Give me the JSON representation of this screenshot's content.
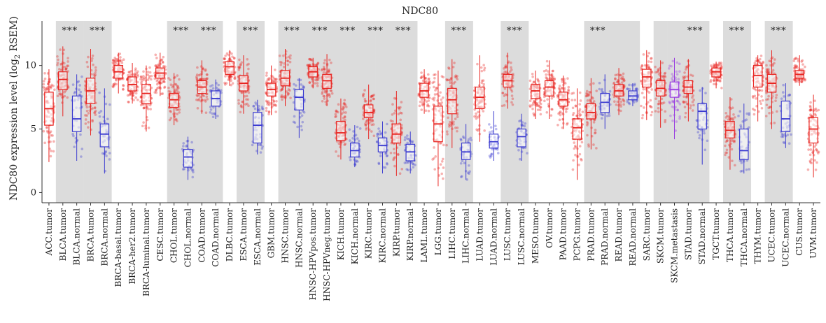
{
  "chart_data": {
    "type": "box",
    "title": "NDC80",
    "ylabel_prefix": "NDC80 expression level (log",
    "ylabel_sub": "2",
    "ylabel_suffix": " RSEM)",
    "ylim": [
      -0.8,
      13.5
    ],
    "yticks": [
      0,
      5,
      10
    ],
    "significance_label": "***",
    "colors": {
      "tumor": "#e8231f",
      "normal": "#3b3bd0",
      "metastasis": "#9a3fe0",
      "shade": "#dcdcdc"
    },
    "categories": [
      {
        "label": "ACC.tumor",
        "type": "tumor",
        "q1": 5.3,
        "median": 6.6,
        "q3": 7.9,
        "low": 2.4,
        "high": 9.7
      },
      {
        "label": "BLCA.tumor",
        "type": "tumor",
        "q1": 8.1,
        "median": 8.9,
        "q3": 9.5,
        "low": 6.0,
        "high": 11.5,
        "sig": "***",
        "shade": true
      },
      {
        "label": "BLCA.normal",
        "type": "normal",
        "q1": 4.8,
        "median": 5.8,
        "q3": 7.6,
        "low": 2.5,
        "high": 9.3,
        "shade": true
      },
      {
        "label": "BRCA.tumor",
        "type": "tumor",
        "q1": 7.0,
        "median": 8.0,
        "q3": 9.0,
        "low": 4.5,
        "high": 11.3,
        "sig": "***",
        "shade": true
      },
      {
        "label": "BRCA.normal",
        "type": "normal",
        "q1": 3.6,
        "median": 4.6,
        "q3": 5.4,
        "low": 1.5,
        "high": 8.2,
        "shade": true
      },
      {
        "label": "BRCA-basal.tumor",
        "type": "tumor",
        "q1": 9.0,
        "median": 9.5,
        "q3": 10.0,
        "low": 7.8,
        "high": 11.0
      },
      {
        "label": "BRCA-her2.tumor",
        "type": "tumor",
        "q1": 8.0,
        "median": 8.5,
        "q3": 9.1,
        "low": 7.0,
        "high": 10.2
      },
      {
        "label": "BRCA-luminal.tumor",
        "type": "tumor",
        "q1": 7.0,
        "median": 7.8,
        "q3": 8.5,
        "low": 4.8,
        "high": 10.0
      },
      {
        "label": "CESC.tumor",
        "type": "tumor",
        "q1": 9.0,
        "median": 9.4,
        "q3": 9.8,
        "low": 7.6,
        "high": 11.0
      },
      {
        "label": "CHOL.tumor",
        "type": "tumor",
        "q1": 6.7,
        "median": 7.3,
        "q3": 7.8,
        "low": 5.3,
        "high": 9.4,
        "sig": "***",
        "shade": true
      },
      {
        "label": "CHOL.normal",
        "type": "normal",
        "q1": 2.0,
        "median": 2.8,
        "q3": 3.4,
        "low": 1.0,
        "high": 4.4,
        "shade": true
      },
      {
        "label": "COAD.tumor",
        "type": "tumor",
        "q1": 7.8,
        "median": 8.3,
        "q3": 8.8,
        "low": 6.2,
        "high": 10.4,
        "sig": "***",
        "shade": true
      },
      {
        "label": "COAD.normal",
        "type": "normal",
        "q1": 6.8,
        "median": 7.4,
        "q3": 8.0,
        "low": 5.8,
        "high": 8.9,
        "shade": true
      },
      {
        "label": "DLBC.tumor",
        "type": "tumor",
        "q1": 9.3,
        "median": 9.9,
        "q3": 10.3,
        "low": 8.4,
        "high": 11.2
      },
      {
        "label": "ESCA.tumor",
        "type": "tumor",
        "q1": 8.0,
        "median": 8.6,
        "q3": 9.2,
        "low": 6.2,
        "high": 10.8,
        "sig": "***",
        "shade": true
      },
      {
        "label": "ESCA.normal",
        "type": "normal",
        "q1": 3.9,
        "median": 5.3,
        "q3": 6.3,
        "low": 3.0,
        "high": 7.3,
        "shade": true
      },
      {
        "label": "GBM.tumor",
        "type": "tumor",
        "q1": 7.6,
        "median": 8.1,
        "q3": 8.6,
        "low": 6.1,
        "high": 10.0
      },
      {
        "label": "HNSC.tumor",
        "type": "tumor",
        "q1": 8.4,
        "median": 9.0,
        "q3": 9.6,
        "low": 6.8,
        "high": 11.3,
        "sig": "***",
        "shade": true
      },
      {
        "label": "HNSC.normal",
        "type": "normal",
        "q1": 6.5,
        "median": 7.5,
        "q3": 8.1,
        "low": 4.3,
        "high": 9.0,
        "shade": true
      },
      {
        "label": "HNSC-HPVpos.tumor",
        "type": "tumor",
        "q1": 9.1,
        "median": 9.5,
        "q3": 9.9,
        "low": 8.2,
        "high": 10.6,
        "sig": "***",
        "shade": true
      },
      {
        "label": "HNSC-HPVneg.tumor",
        "type": "tumor",
        "q1": 8.2,
        "median": 8.8,
        "q3": 9.3,
        "low": 6.8,
        "high": 10.9,
        "shade": true
      },
      {
        "label": "KICH.tumor",
        "type": "tumor",
        "q1": 4.1,
        "median": 4.7,
        "q3": 5.6,
        "low": 2.6,
        "high": 7.4,
        "sig": "***",
        "shade": true
      },
      {
        "label": "KICH.normal",
        "type": "normal",
        "q1": 2.8,
        "median": 3.3,
        "q3": 3.9,
        "low": 2.0,
        "high": 5.3,
        "shade": true
      },
      {
        "label": "KIRC.tumor",
        "type": "tumor",
        "q1": 5.9,
        "median": 6.3,
        "q3": 6.9,
        "low": 4.2,
        "high": 8.5,
        "sig": "***",
        "shade": true
      },
      {
        "label": "KIRC.normal",
        "type": "normal",
        "q1": 3.2,
        "median": 3.7,
        "q3": 4.3,
        "low": 1.5,
        "high": 5.6,
        "shade": true
      },
      {
        "label": "KIRP.tumor",
        "type": "tumor",
        "q1": 3.9,
        "median": 4.6,
        "q3": 5.4,
        "low": 1.3,
        "high": 8.0,
        "sig": "***",
        "shade": true
      },
      {
        "label": "KIRP.normal",
        "type": "normal",
        "q1": 2.5,
        "median": 3.2,
        "q3": 3.8,
        "low": 1.5,
        "high": 4.8,
        "shade": true
      },
      {
        "label": "LAML.tumor",
        "type": "tumor",
        "q1": 7.5,
        "median": 8.0,
        "q3": 8.6,
        "low": 6.2,
        "high": 9.7
      },
      {
        "label": "LGG.tumor",
        "type": "tumor",
        "q1": 4.0,
        "median": 5.4,
        "q3": 6.8,
        "low": 0.5,
        "high": 9.6
      },
      {
        "label": "LIHC.tumor",
        "type": "tumor",
        "q1": 6.2,
        "median": 7.3,
        "q3": 8.2,
        "low": 3.5,
        "high": 10.5,
        "sig": "***",
        "shade": true
      },
      {
        "label": "LIHC.normal",
        "type": "normal",
        "q1": 2.6,
        "median": 3.2,
        "q3": 3.9,
        "low": 1.0,
        "high": 5.4,
        "shade": true
      },
      {
        "label": "LUAD.tumor",
        "type": "tumor",
        "q1": 6.6,
        "median": 7.5,
        "q3": 8.3,
        "low": 4.0,
        "high": 10.8
      },
      {
        "label": "LUAD.normal",
        "type": "normal",
        "q1": 3.5,
        "median": 4.0,
        "q3": 4.6,
        "low": 2.5,
        "high": 6.4
      },
      {
        "label": "LUSC.tumor",
        "type": "tumor",
        "q1": 8.3,
        "median": 8.8,
        "q3": 9.3,
        "low": 6.6,
        "high": 11.0,
        "sig": "***",
        "shade": true
      },
      {
        "label": "LUSC.normal",
        "type": "normal",
        "q1": 3.6,
        "median": 4.4,
        "q3": 5.0,
        "low": 2.5,
        "high": 6.2,
        "shade": true
      },
      {
        "label": "MESO.tumor",
        "type": "tumor",
        "q1": 7.4,
        "median": 8.0,
        "q3": 8.5,
        "low": 5.8,
        "high": 9.6
      },
      {
        "label": "OV.tumor",
        "type": "tumor",
        "q1": 7.6,
        "median": 8.3,
        "q3": 8.8,
        "low": 5.8,
        "high": 10.4
      },
      {
        "label": "PAAD.tumor",
        "type": "tumor",
        "q1": 6.8,
        "median": 7.3,
        "q3": 7.9,
        "low": 5.0,
        "high": 9.2
      },
      {
        "label": "PCPG.tumor",
        "type": "tumor",
        "q1": 4.2,
        "median": 5.1,
        "q3": 5.8,
        "low": 1.0,
        "high": 8.2
      },
      {
        "label": "PRAD.tumor",
        "type": "tumor",
        "q1": 5.8,
        "median": 6.3,
        "q3": 7.0,
        "low": 3.4,
        "high": 9.0,
        "sig": "***",
        "shade": true
      },
      {
        "label": "PRAD.normal",
        "type": "normal",
        "q1": 6.3,
        "median": 7.1,
        "q3": 7.8,
        "low": 5.0,
        "high": 9.3,
        "shade": true
      },
      {
        "label": "READ.tumor",
        "type": "tumor",
        "q1": 7.6,
        "median": 8.0,
        "q3": 8.5,
        "low": 6.1,
        "high": 9.8,
        "shade": true
      },
      {
        "label": "READ.normal",
        "type": "normal",
        "q1": 7.3,
        "median": 7.6,
        "q3": 8.0,
        "low": 6.8,
        "high": 8.6,
        "shade": true
      },
      {
        "label": "SARC.tumor",
        "type": "tumor",
        "q1": 8.3,
        "median": 9.1,
        "q3": 9.7,
        "low": 5.7,
        "high": 11.2
      },
      {
        "label": "SKCM.tumor",
        "type": "tumor",
        "q1": 7.6,
        "median": 8.2,
        "q3": 8.8,
        "low": 5.1,
        "high": 10.4,
        "shade": true
      },
      {
        "label": "SKCM.metastasis",
        "type": "metastasis",
        "q1": 7.5,
        "median": 8.1,
        "q3": 8.7,
        "low": 4.2,
        "high": 10.6,
        "shade": true
      },
      {
        "label": "STAD.tumor",
        "type": "tumor",
        "q1": 7.8,
        "median": 8.3,
        "q3": 8.8,
        "low": 5.6,
        "high": 10.5,
        "sig": "***",
        "shade": true
      },
      {
        "label": "STAD.normal",
        "type": "normal",
        "q1": 5.0,
        "median": 6.4,
        "q3": 7.0,
        "low": 2.2,
        "high": 8.3,
        "shade": true
      },
      {
        "label": "TGCT.tumor",
        "type": "tumor",
        "q1": 9.1,
        "median": 9.5,
        "q3": 9.8,
        "low": 8.2,
        "high": 10.3
      },
      {
        "label": "THCA.tumor",
        "type": "tumor",
        "q1": 4.3,
        "median": 4.9,
        "q3": 5.6,
        "low": 1.8,
        "high": 7.5,
        "sig": "***",
        "shade": true
      },
      {
        "label": "THCA.normal",
        "type": "normal",
        "q1": 2.6,
        "median": 3.3,
        "q3": 5.0,
        "low": 1.5,
        "high": 7.0,
        "shade": true
      },
      {
        "label": "THYM.tumor",
        "type": "tumor",
        "q1": 8.3,
        "median": 9.2,
        "q3": 10.0,
        "low": 5.6,
        "high": 10.8
      },
      {
        "label": "UCEC.tumor",
        "type": "tumor",
        "q1": 7.9,
        "median": 8.6,
        "q3": 9.3,
        "low": 5.0,
        "high": 11.2,
        "sig": "***",
        "shade": true
      },
      {
        "label": "UCEC.normal",
        "type": "normal",
        "q1": 4.8,
        "median": 5.8,
        "q3": 7.2,
        "low": 3.5,
        "high": 8.6,
        "shade": true
      },
      {
        "label": "CUS.tumor",
        "type": "tumor",
        "q1": 9.0,
        "median": 9.3,
        "q3": 9.6,
        "low": 8.4,
        "high": 10.8
      },
      {
        "label": "UVM.tumor",
        "type": "tumor",
        "q1": 3.9,
        "median": 5.0,
        "q3": 5.9,
        "low": 1.2,
        "high": 7.7
      }
    ]
  }
}
